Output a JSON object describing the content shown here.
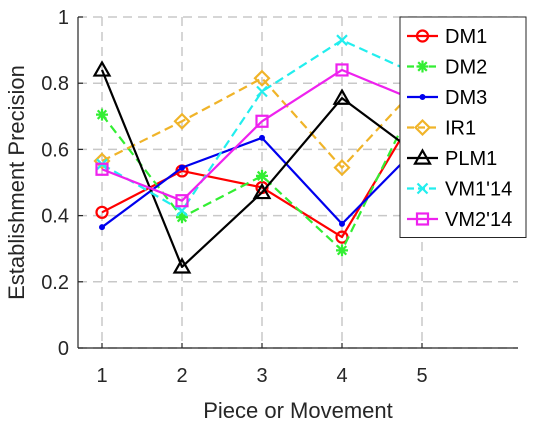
{
  "chart_data": {
    "type": "line",
    "xlabel": "Piece or Movement",
    "ylabel": "Establishment Precision",
    "x": [
      1,
      2,
      3,
      4,
      5
    ],
    "xlim": [
      0.7,
      6.2
    ],
    "ylim": [
      0,
      1
    ],
    "xticks": [
      "1",
      "2",
      "3",
      "4",
      "5"
    ],
    "yticks": [
      "0",
      "0.2",
      "0.4",
      "0.6",
      "0.8",
      "1"
    ],
    "grid": true,
    "legend_position": "top-right",
    "series": [
      {
        "name": "DM1",
        "color": "#ff0000",
        "dash": "solid",
        "marker": "circle",
        "values": [
          0.41,
          0.535,
          0.485,
          0.335,
          0.74
        ]
      },
      {
        "name": "DM2",
        "color": "#33ee33",
        "dash": "dashed",
        "marker": "asterisk",
        "values": [
          0.705,
          0.395,
          0.52,
          0.295,
          0.79
        ]
      },
      {
        "name": "DM3",
        "color": "#0000ee",
        "dash": "solid",
        "marker": "point",
        "values": [
          0.365,
          0.545,
          0.635,
          0.375,
          0.62
        ]
      },
      {
        "name": "IR1",
        "color": "#f0b429",
        "dash": "dashed",
        "marker": "diamond",
        "values": [
          0.565,
          0.685,
          0.815,
          0.545,
          0.805
        ]
      },
      {
        "name": "PLM1",
        "color": "#000000",
        "dash": "solid",
        "marker": "triangle",
        "values": [
          0.84,
          0.245,
          0.47,
          0.755,
          0.575
        ]
      },
      {
        "name": "VM1'14",
        "color": "#22eeee",
        "dash": "dashed",
        "marker": "cross",
        "values": [
          0.555,
          0.415,
          0.775,
          0.93,
          0.82
        ]
      },
      {
        "name": "VM2'14",
        "color": "#ee22ee",
        "dash": "solid",
        "marker": "square",
        "values": [
          0.54,
          0.445,
          0.685,
          0.84,
          0.74
        ]
      }
    ]
  }
}
